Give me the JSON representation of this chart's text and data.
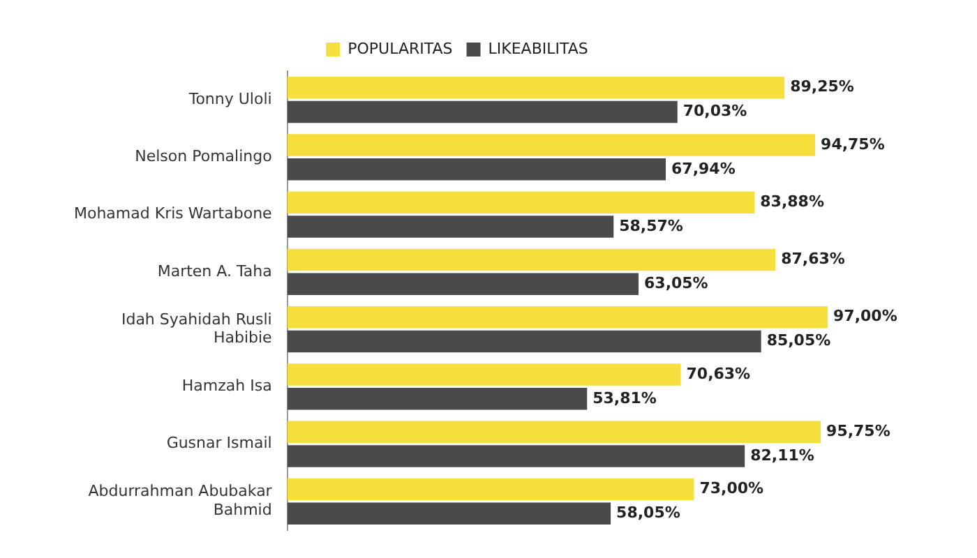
{
  "chart_data": {
    "type": "bar",
    "orientation": "horizontal",
    "legend": "top",
    "categories": [
      "Tonny Uloli",
      "Nelson Pomalingo",
      "Mohamad Kris Wartabone",
      "Marten A. Taha",
      "Idah Syahidah Rusli Habibie",
      "Hamzah Isa",
      "Gusnar Ismail",
      "Abdurrahman Abubakar Bahmid"
    ],
    "series": [
      {
        "name": "POPULARITAS",
        "color": "#f6df3b",
        "values": [
          89.25,
          94.75,
          83.88,
          87.63,
          97.0,
          70.63,
          95.75,
          73.0
        ],
        "value_labels": [
          "89,25%",
          "94,75%",
          "83,88%",
          "87,63%",
          "97,00%",
          "70,63%",
          "95,75%",
          "73,00%"
        ]
      },
      {
        "name": "LIKEABILITAS",
        "color": "#4a4a4a",
        "values": [
          70.03,
          67.94,
          58.57,
          63.05,
          85.05,
          53.81,
          82.11,
          58.05
        ],
        "value_labels": [
          "70,03%",
          "67,94%",
          "58,57%",
          "63,05%",
          "85,05%",
          "53,81%",
          "82,11%",
          "58,05%"
        ]
      }
    ]
  }
}
